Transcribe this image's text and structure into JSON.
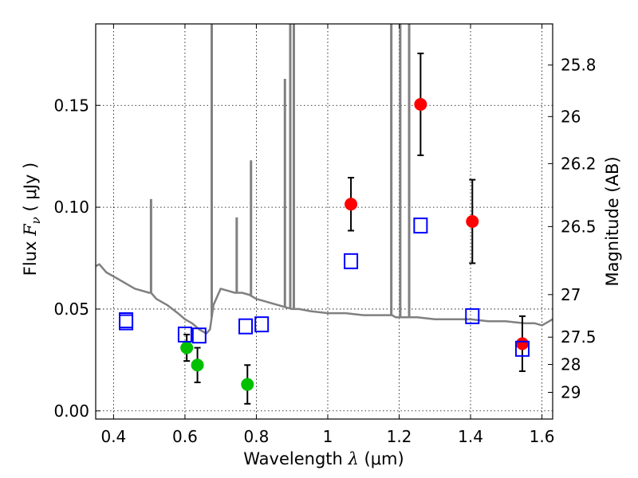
{
  "chart_data": {
    "type": "scatter",
    "xlabel": {
      "prefix": "Wavelength  ",
      "symbol": "λ",
      "unit": " (μm)"
    },
    "ylabel": {
      "prefix": "Flux  ",
      "symbol": "F",
      "subscript": "ν",
      "unit": "  ( μJy )"
    },
    "y2label": "Magnitude (AB)",
    "xlim": [
      0.35,
      1.63
    ],
    "ylim": [
      -0.004,
      0.19
    ],
    "x_ticks": [
      0.4,
      0.6,
      0.8,
      1.0,
      1.2,
      1.4,
      1.6
    ],
    "x_tick_labels": [
      "0.4",
      "0.6",
      "0.8",
      "1",
      "1.2",
      "1.4",
      "1.6"
    ],
    "y_ticks": [
      0.0,
      0.05,
      0.1,
      0.15
    ],
    "y_tick_labels": [
      "0.00",
      "0.05",
      "0.10",
      "0.15"
    ],
    "y2_ticks": [
      {
        "label": "25.8",
        "flux": 0.1698
      },
      {
        "label": "26",
        "flux": 0.1445
      },
      {
        "label": "26.2",
        "flux": 0.1214
      },
      {
        "label": "26.5",
        "flux": 0.0905
      },
      {
        "label": "27",
        "flux": 0.0571
      },
      {
        "label": "27.5",
        "flux": 0.0362
      },
      {
        "label": "28",
        "flux": 0.0228
      },
      {
        "label": "29",
        "flux": 0.0091
      }
    ],
    "grid": true,
    "colors": {
      "model": "#808080",
      "red": "#ff0000",
      "green": "#00c000",
      "open": "#0000ff",
      "errorbar": "#000000"
    },
    "series": [
      {
        "marker": "circle",
        "color": "#ff0000",
        "points": [
          {
            "x": 1.065,
            "y": 0.1015,
            "yerr": 0.013
          },
          {
            "x": 1.26,
            "y": 0.1505,
            "yerr": 0.025
          },
          {
            "x": 1.405,
            "y": 0.093,
            "yerr": 0.0205
          },
          {
            "x": 1.545,
            "y": 0.033,
            "yerr": 0.0135
          }
        ]
      },
      {
        "marker": "circle",
        "color": "#00c000",
        "points": [
          {
            "x": 0.605,
            "y": 0.031,
            "yerr": 0.0065
          },
          {
            "x": 0.635,
            "y": 0.0225,
            "yerr": 0.0085
          },
          {
            "x": 0.775,
            "y": 0.013,
            "yerr": 0.0095
          }
        ]
      },
      {
        "marker": "square-open",
        "color": "#0000ff",
        "points": [
          {
            "x": 0.435,
            "y": 0.0445
          },
          {
            "x": 0.435,
            "y": 0.0435
          },
          {
            "x": 0.6,
            "y": 0.0375
          },
          {
            "x": 0.64,
            "y": 0.037
          },
          {
            "x": 0.77,
            "y": 0.0415
          },
          {
            "x": 0.815,
            "y": 0.0425
          },
          {
            "x": 1.065,
            "y": 0.0735
          },
          {
            "x": 1.26,
            "y": 0.091
          },
          {
            "x": 1.405,
            "y": 0.0465
          },
          {
            "x": 1.545,
            "y": 0.0305
          }
        ]
      }
    ],
    "model": {
      "x": [
        0.35,
        0.36,
        0.38,
        0.4,
        0.42,
        0.44,
        0.46,
        0.48,
        0.5,
        0.505,
        0.51,
        0.52,
        0.55,
        0.58,
        0.6,
        0.62,
        0.64,
        0.66,
        0.67,
        0.68,
        0.7,
        0.72,
        0.74,
        0.76,
        0.78,
        0.8,
        0.82,
        0.84,
        0.86,
        0.88,
        0.9,
        0.92,
        0.95,
        1.0,
        1.05,
        1.1,
        1.15,
        1.18,
        1.19,
        1.2,
        1.21,
        1.22,
        1.25,
        1.3,
        1.35,
        1.4,
        1.45,
        1.5,
        1.55,
        1.58,
        1.6,
        1.63
      ],
      "y": [
        0.071,
        0.072,
        0.068,
        0.066,
        0.064,
        0.062,
        0.06,
        0.059,
        0.058,
        0.058,
        0.057,
        0.055,
        0.052,
        0.048,
        0.045,
        0.043,
        0.04,
        0.038,
        0.04,
        0.052,
        0.06,
        0.059,
        0.058,
        0.058,
        0.057,
        0.055,
        0.054,
        0.053,
        0.052,
        0.051,
        0.05,
        0.05,
        0.049,
        0.048,
        0.048,
        0.047,
        0.047,
        0.047,
        0.046,
        0.046,
        0.046,
        0.046,
        0.046,
        0.045,
        0.045,
        0.045,
        0.044,
        0.044,
        0.043,
        0.043,
        0.042,
        0.045
      ]
    },
    "model_spikes": [
      {
        "x": 0.505,
        "top": 0.104
      },
      {
        "x": 0.675,
        "top": 0.19
      },
      {
        "x": 0.745,
        "top": 0.095
      },
      {
        "x": 0.785,
        "top": 0.123
      },
      {
        "x": 0.88,
        "top": 0.163
      },
      {
        "x": 0.895,
        "top": 0.19
      },
      {
        "x": 0.905,
        "top": 0.19
      },
      {
        "x": 1.178,
        "top": 0.19
      },
      {
        "x": 1.203,
        "top": 0.19
      },
      {
        "x": 1.228,
        "top": 0.19
      }
    ]
  }
}
